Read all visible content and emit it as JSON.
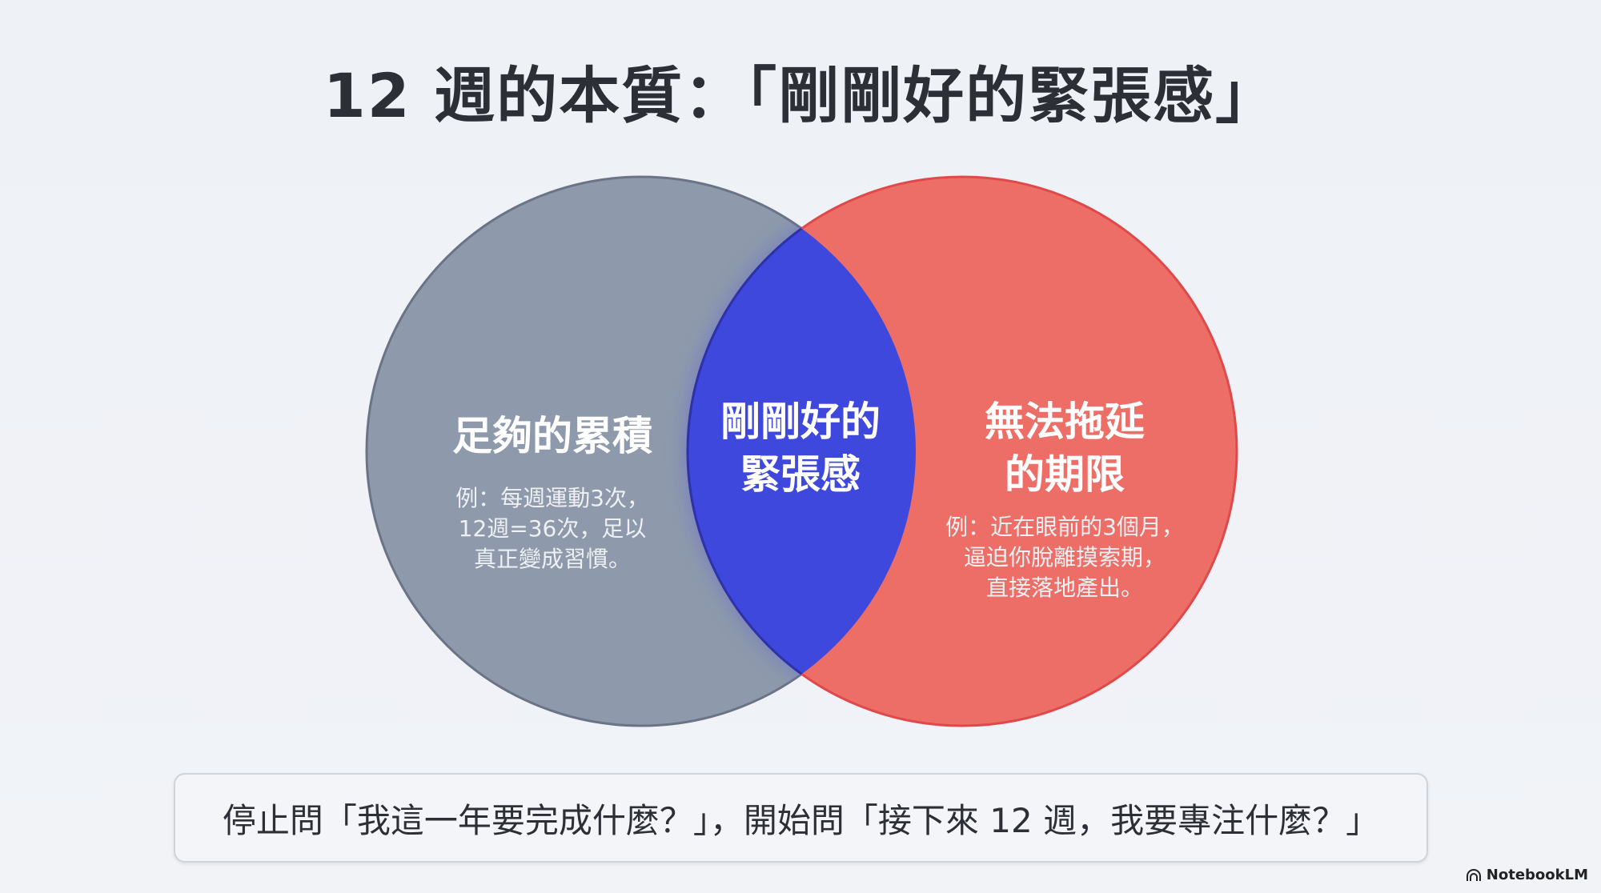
{
  "title": "12 週的本質：「剛剛好的緊張感」",
  "left": {
    "heading": "足夠的累積",
    "example": [
      "例：每週運動3次，",
      "12週=36次，足以",
      "真正變成習慣。"
    ]
  },
  "center": {
    "heading": [
      "剛剛好的",
      "緊張感"
    ]
  },
  "right": {
    "heading": [
      "無法拖延",
      "的期限"
    ],
    "example": [
      "例：近在眼前的3個月，",
      "逼迫你脫離摸索期，",
      "直接落地產出。"
    ]
  },
  "footer": "停止問「我這一年要完成什麼？」，開始問「接下來 12 週，我要專注什麼？」",
  "brand": "NotebookLM",
  "colors": {
    "left": "#8e9aab",
    "right": "#ec6e66",
    "overlap": "#3f48dc"
  }
}
